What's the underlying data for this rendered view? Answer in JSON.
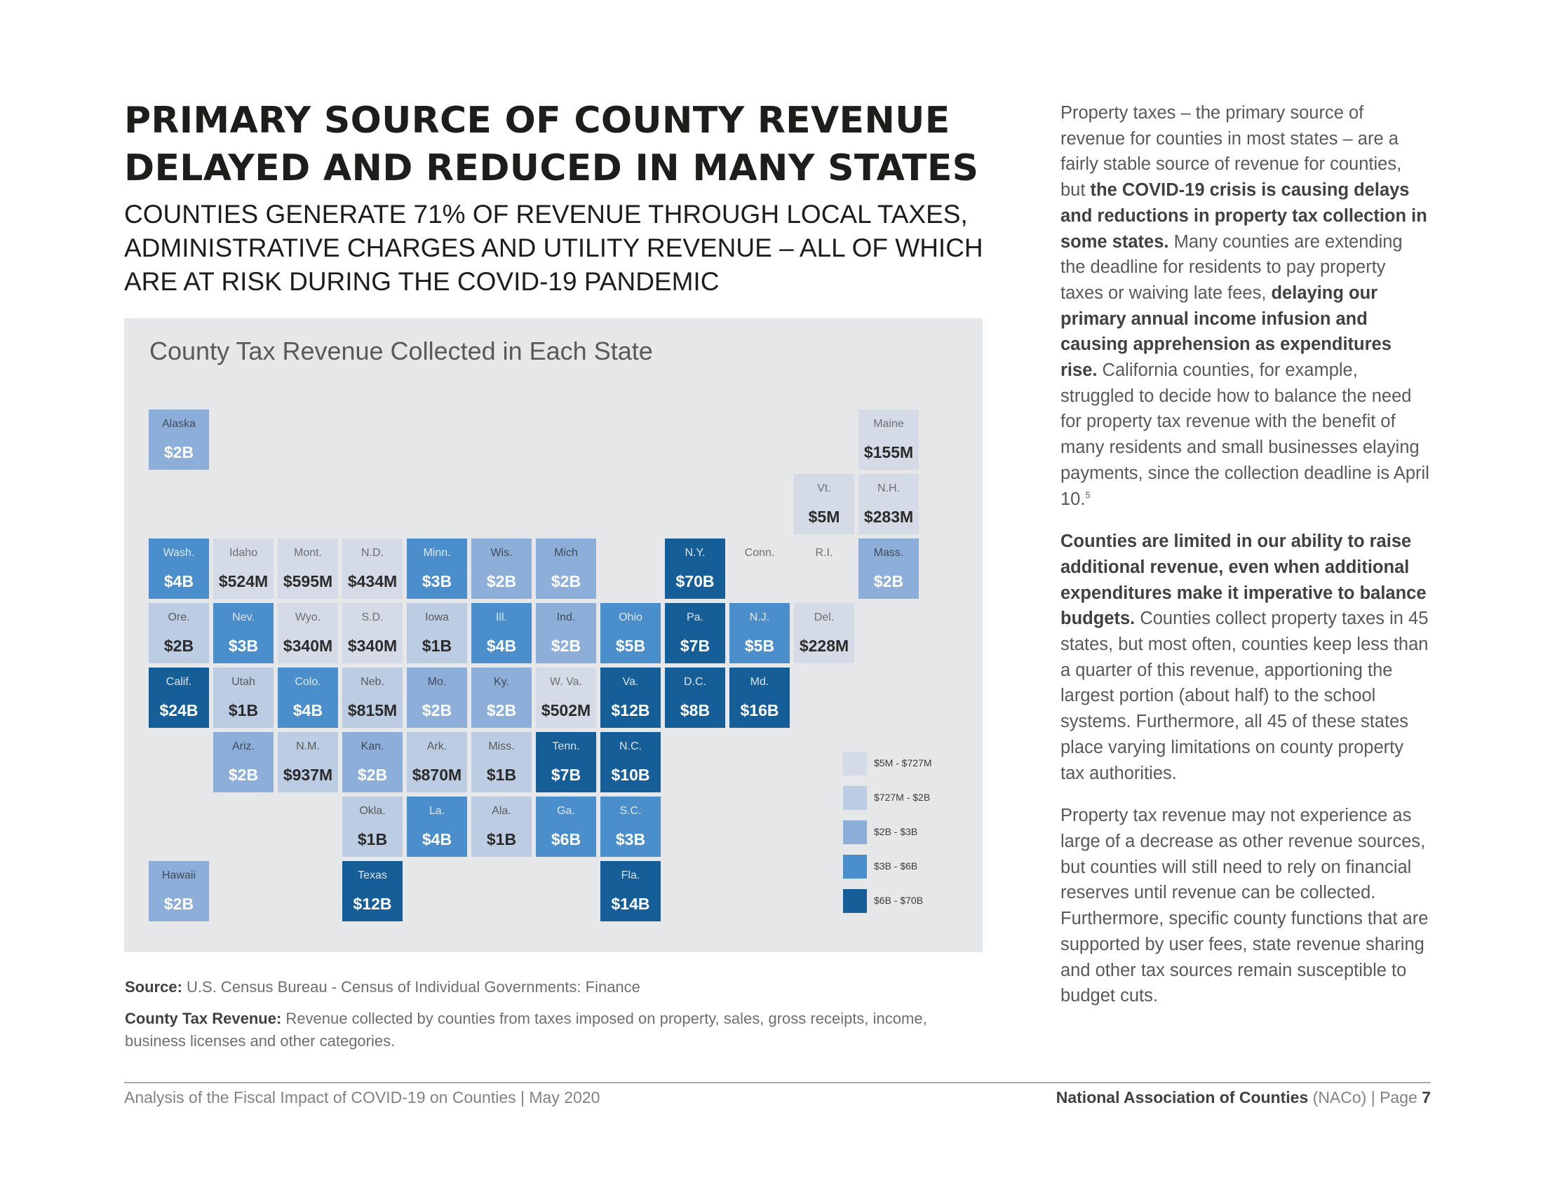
{
  "header": {
    "title_lines": [
      "PRIMARY SOURCE OF COUNTY REVENUE",
      "DELAYED AND REDUCED IN MANY STATES"
    ],
    "subtitle_lines": [
      "COUNTIES GENERATE 71% OF REVENUE THROUGH LOCAL TAXES,",
      "ADMINISTRATIVE CHARGES AND UTILITY REVENUE – ALL OF WHICH",
      "ARE AT RISK DURING THE COVID-19 PANDEMIC"
    ]
  },
  "map": {
    "title": "County Tax Revenue Collected in Each State",
    "colors": {
      "bin1": "#d4dae6",
      "bin2": "#bccde3",
      "bin3": "#8daed8",
      "bin4": "#4a8ecb",
      "bin5": "#165e98",
      "panel": "#e6e7e8"
    },
    "tiles": [
      {
        "abbr": "Alaska",
        "value": "$2B",
        "bin": 3
      },
      {
        "abbr": "Maine",
        "value": "$155M",
        "bin": 1
      },
      {
        "abbr": "Vt.",
        "value": "$5M",
        "bin": 1
      },
      {
        "abbr": "N.H.",
        "value": "$283M",
        "bin": 1
      },
      {
        "abbr": "Wash.",
        "value": "$4B",
        "bin": 4
      },
      {
        "abbr": "Idaho",
        "value": "$524M",
        "bin": 1
      },
      {
        "abbr": "Mont.",
        "value": "$595M",
        "bin": 1
      },
      {
        "abbr": "N.D.",
        "value": "$434M",
        "bin": 1
      },
      {
        "abbr": "Minn.",
        "value": "$3B",
        "bin": 4
      },
      {
        "abbr": "Wis.",
        "value": "$2B",
        "bin": 3
      },
      {
        "abbr": "Mich",
        "value": "$2B",
        "bin": 3
      },
      {
        "abbr": "N.Y.",
        "value": "$70B",
        "bin": 5
      },
      {
        "abbr": "Conn.",
        "value": "",
        "bin": 0
      },
      {
        "abbr": "R.I.",
        "value": "",
        "bin": 0
      },
      {
        "abbr": "Mass.",
        "value": "$2B",
        "bin": 3
      },
      {
        "abbr": "Ore.",
        "value": "$2B",
        "bin": 2
      },
      {
        "abbr": "Nev.",
        "value": "$3B",
        "bin": 4
      },
      {
        "abbr": "Wyo.",
        "value": "$340M",
        "bin": 1
      },
      {
        "abbr": "S.D.",
        "value": "$340M",
        "bin": 1
      },
      {
        "abbr": "Iowa",
        "value": "$1B",
        "bin": 2
      },
      {
        "abbr": "Ill.",
        "value": "$4B",
        "bin": 4
      },
      {
        "abbr": "Ind.",
        "value": "$2B",
        "bin": 3
      },
      {
        "abbr": "Ohio",
        "value": "$5B",
        "bin": 4
      },
      {
        "abbr": "Pa.",
        "value": "$7B",
        "bin": 5
      },
      {
        "abbr": "N.J.",
        "value": "$5B",
        "bin": 4
      },
      {
        "abbr": "Del.",
        "value": "$228M",
        "bin": 1
      },
      {
        "abbr": "Calif.",
        "value": "$24B",
        "bin": 5
      },
      {
        "abbr": "Utah",
        "value": "$1B",
        "bin": 2
      },
      {
        "abbr": "Colo.",
        "value": "$4B",
        "bin": 4
      },
      {
        "abbr": "Neb.",
        "value": "$815M",
        "bin": 2
      },
      {
        "abbr": "Mo.",
        "value": "$2B",
        "bin": 3
      },
      {
        "abbr": "Ky.",
        "value": "$2B",
        "bin": 3
      },
      {
        "abbr": "W. Va.",
        "value": "$502M",
        "bin": 1
      },
      {
        "abbr": "Va.",
        "value": "$12B",
        "bin": 5
      },
      {
        "abbr": "D.C.",
        "value": "$8B",
        "bin": 5
      },
      {
        "abbr": "Md.",
        "value": "$16B",
        "bin": 5
      },
      {
        "abbr": "Ariz.",
        "value": "$2B",
        "bin": 3
      },
      {
        "abbr": "N.M.",
        "value": "$937M",
        "bin": 2
      },
      {
        "abbr": "Kan.",
        "value": "$2B",
        "bin": 3
      },
      {
        "abbr": "Ark.",
        "value": "$870M",
        "bin": 2
      },
      {
        "abbr": "Miss.",
        "value": "$1B",
        "bin": 2
      },
      {
        "abbr": "Tenn.",
        "value": "$7B",
        "bin": 5
      },
      {
        "abbr": "N.C.",
        "value": "$10B",
        "bin": 5
      },
      {
        "abbr": "Okla.",
        "value": "$1B",
        "bin": 2
      },
      {
        "abbr": "La.",
        "value": "$4B",
        "bin": 4
      },
      {
        "abbr": "Ala.",
        "value": "$1B",
        "bin": 2
      },
      {
        "abbr": "Ga.",
        "value": "$6B",
        "bin": 4
      },
      {
        "abbr": "S.C.",
        "value": "$3B",
        "bin": 4
      },
      {
        "abbr": "Hawaii",
        "value": "$2B",
        "bin": 3
      },
      {
        "abbr": "Texas",
        "value": "$12B",
        "bin": 5
      },
      {
        "abbr": "Fla.",
        "value": "$14B",
        "bin": 5
      }
    ],
    "legend": [
      {
        "label": "$5M - $727M",
        "bin": 1
      },
      {
        "label": "$727M - $2B",
        "bin": 2
      },
      {
        "label": "$2B - $3B",
        "bin": 3
      },
      {
        "label": "$3B - $6B",
        "bin": 4
      },
      {
        "label": "$6B - $70B",
        "bin": 5
      }
    ]
  },
  "source": {
    "label": "Source:",
    "text": " U.S. Census Bureau - Census of Individual Governments: Finance"
  },
  "note": {
    "label": "County Tax Revenue:",
    "text": " Revenue collected by counties from taxes imposed on property, sales, gross receipts, income, business licenses and other categories."
  },
  "sidebar": {
    "p1": [
      {
        "t": "Property taxes – the primary source of revenue for counties in most states – are a fairly stable source of revenue for counties, but ",
        "b": false
      },
      {
        "t": "the COVID-19 crisis is causing delays and reductions in property tax collection in some states.",
        "b": true
      },
      {
        "t": " Many counties are extending the deadline for residents to pay property taxes or waiving late fees, ",
        "b": false
      },
      {
        "t": "delaying our primary annual income infusion and causing apprehension as expenditures rise.",
        "b": true
      },
      {
        "t": " California counties, for example, struggled to decide how to balance the need for property tax revenue with the benefit of many residents and small businesses elaying payments, since the collection deadline is April 10.",
        "b": false
      }
    ],
    "p1_footnote": "5",
    "p2": [
      {
        "t": "Counties are limited in our ability to raise additional revenue, even when additional expenditures make it imperative to balance budgets.",
        "b": true
      },
      {
        "t": " Counties collect property taxes in 45 states, but most often, counties keep less than a quarter of this revenue, apportioning the largest portion (about half) to the school systems. Furthermore, all 45 of these states place varying limitations on county property tax authorities.",
        "b": false
      }
    ],
    "p3": [
      {
        "t": "Property tax revenue may not experience as large of a decrease as other revenue sources, but counties will still need to rely on financial reserves until revenue can be collected. Furthermore, specific county functions that are supported by user fees, state revenue sharing and other tax sources remain susceptible to budget cuts.",
        "b": false
      }
    ]
  },
  "footer": {
    "left": "Analysis of the Fiscal Impact of COVID-19 on Counties | May 2020",
    "org": "National Association of Counties",
    "org_abbr": " (NACo)",
    "page_prefix": " | Page ",
    "page_number": "7"
  }
}
